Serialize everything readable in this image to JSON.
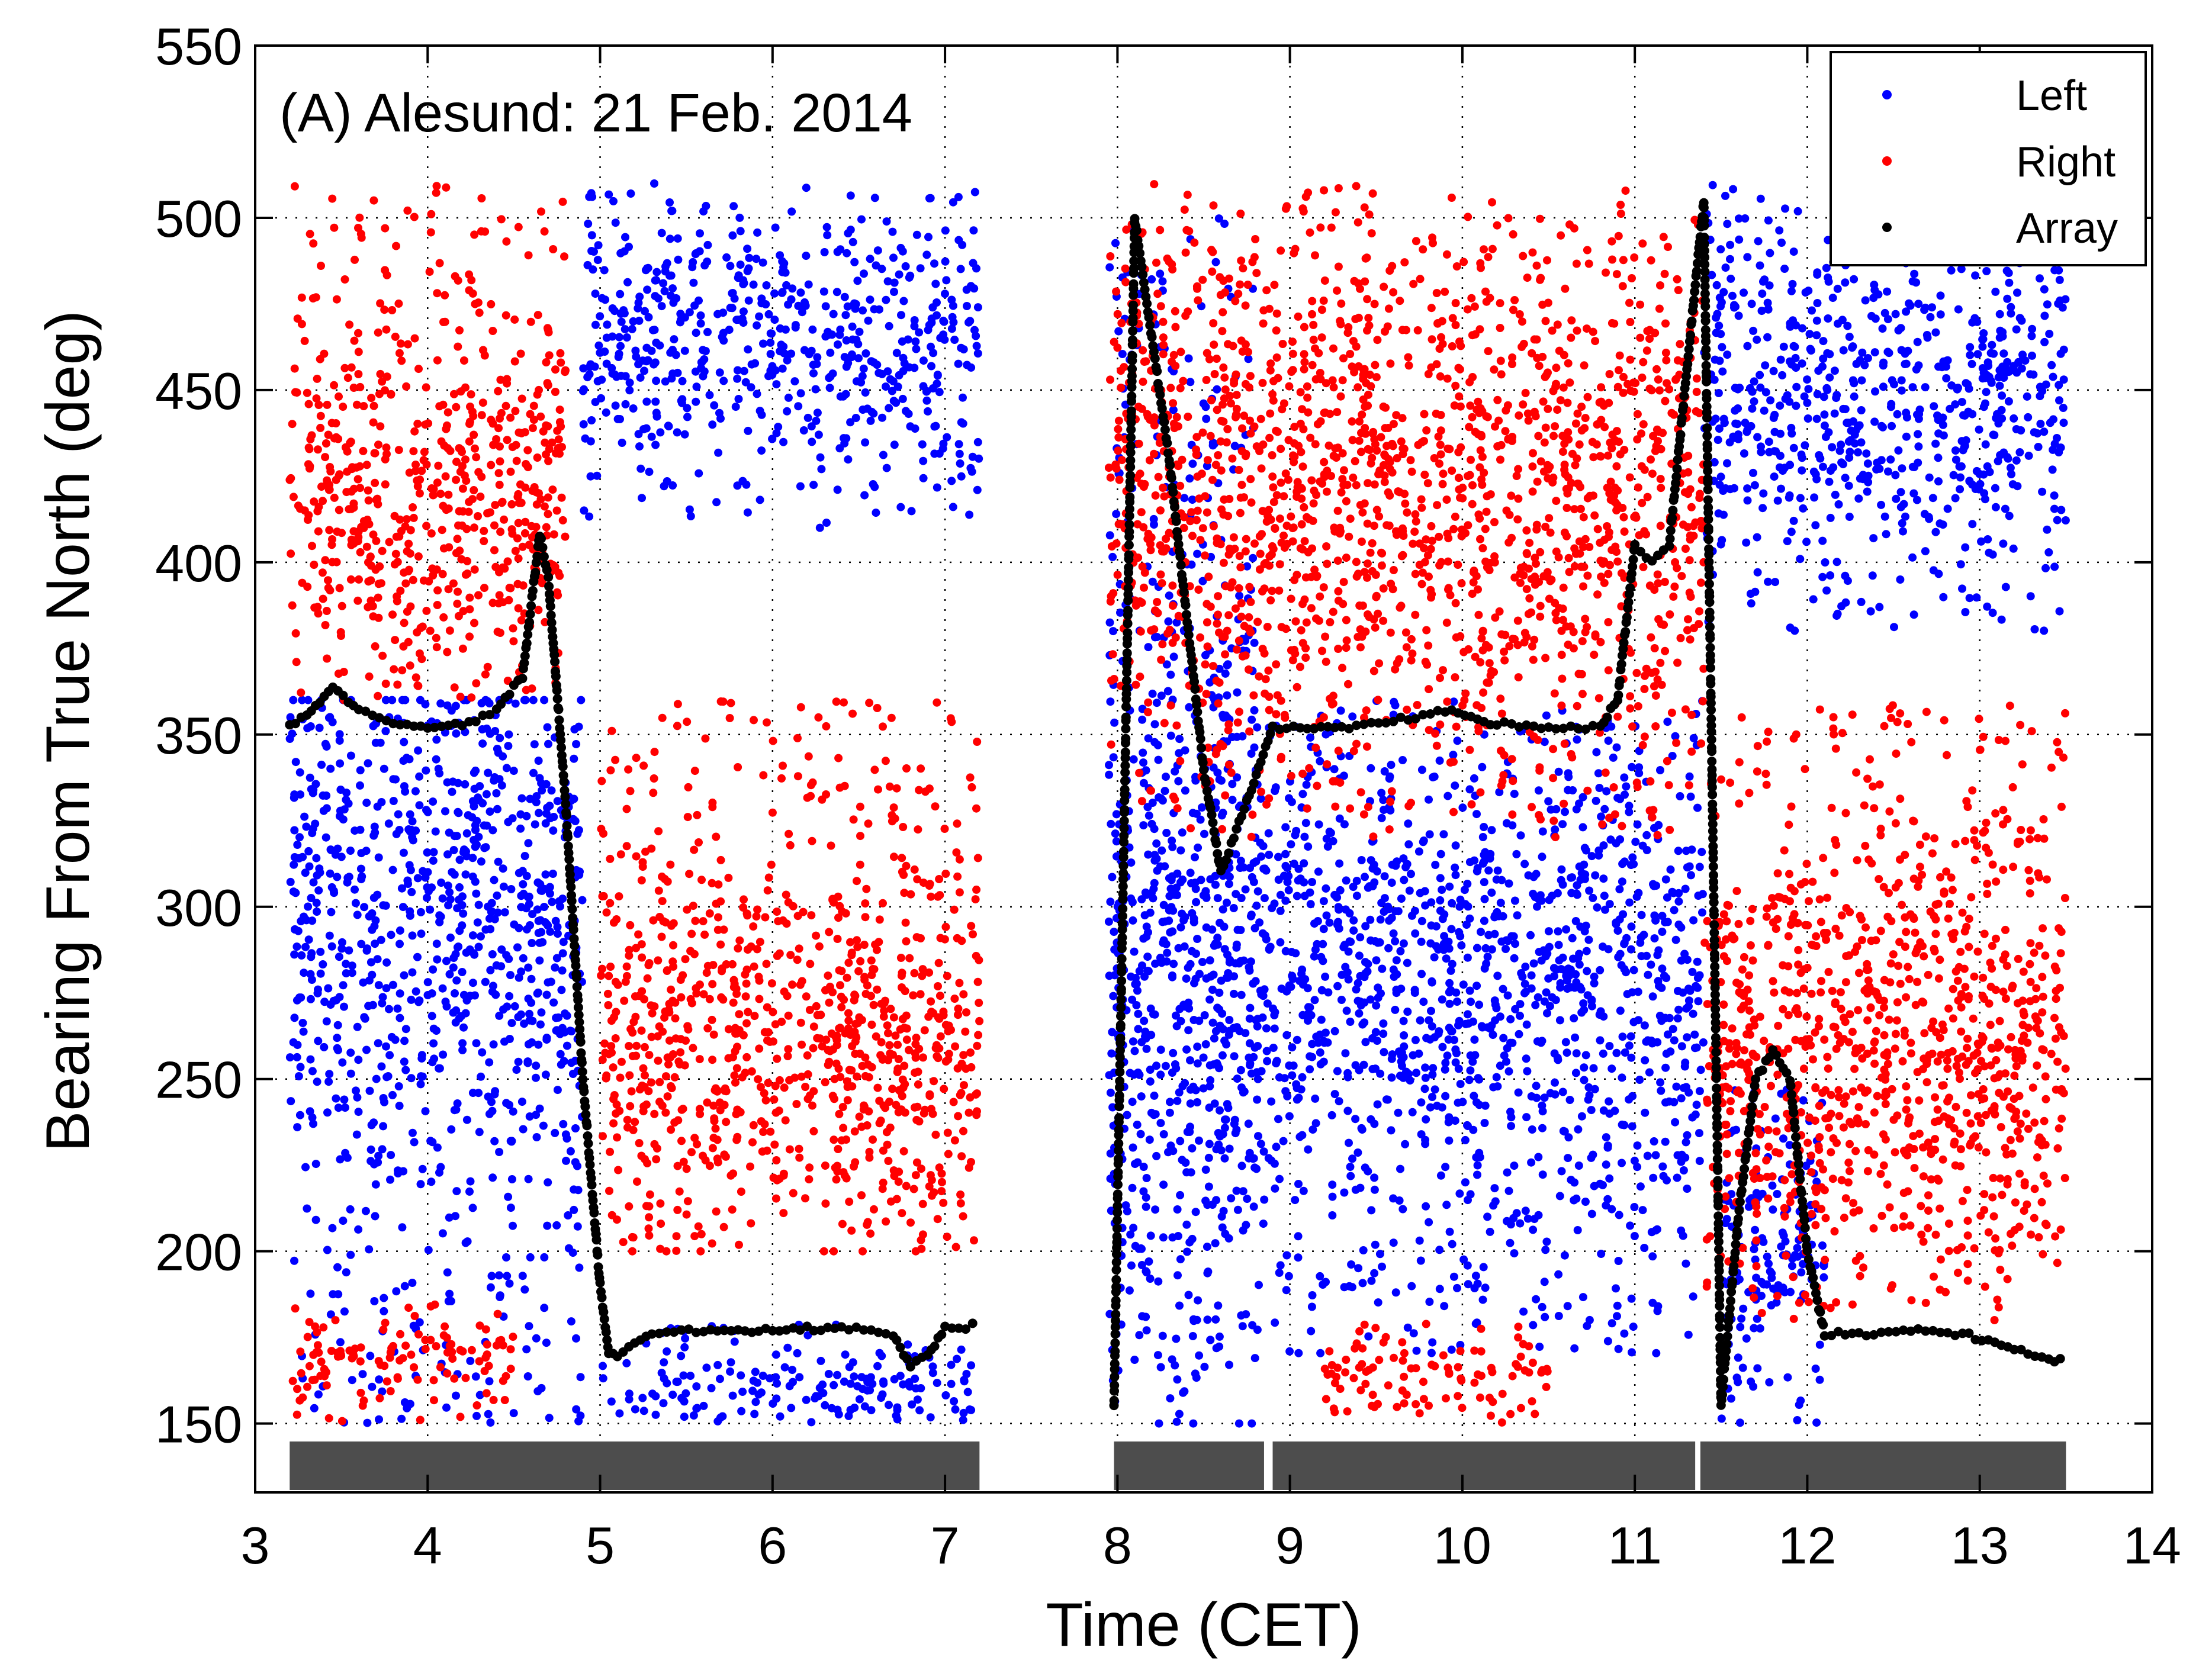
{
  "chart_data": {
    "type": "scatter",
    "title": "(A) Alesund: 21 Feb. 2014",
    "xlabel": "Time (CET)",
    "ylabel": "Bearing From True North (deg)",
    "xlim": [
      3,
      14
    ],
    "ylim": [
      130,
      550
    ],
    "xticks": [
      3,
      4,
      5,
      6,
      7,
      8,
      9,
      10,
      11,
      12,
      13,
      14
    ],
    "yticks": [
      150,
      200,
      250,
      300,
      350,
      400,
      450,
      500,
      550
    ],
    "grid": "dotted",
    "legend": {
      "position": "top-right",
      "entries": [
        "Left",
        "Right",
        "Array"
      ]
    },
    "colors": {
      "Left": "#0000ff",
      "Right": "#ff0000",
      "Array": "#000000",
      "bars": "#4d4d4d"
    },
    "series": [
      {
        "name": "Left",
        "description_regions": [
          {
            "x": [
              3.2,
              4.9
            ],
            "y": [
              150,
              360
            ],
            "center": 300
          },
          {
            "x": [
              4.9,
              7.2
            ],
            "y": [
              410,
              510
            ],
            "center": 465
          },
          {
            "x": [
              5.0,
              7.2
            ],
            "y": [
              150,
              180
            ],
            "center": 160
          },
          {
            "x": [
              7.95,
              8.8
            ],
            "y": [
              150,
              500
            ],
            "center": 280
          },
          {
            "x": [
              8.8,
              11.4
            ],
            "y": [
              170,
              360
            ],
            "center": 280
          },
          {
            "x": [
              11.4,
              13.5
            ],
            "y": [
              380,
              510
            ],
            "center": 450
          },
          {
            "x": [
              11.5,
              12.1
            ],
            "y": [
              150,
              250
            ],
            "center": 200
          }
        ]
      },
      {
        "name": "Right",
        "description_regions": [
          {
            "x": [
              3.2,
              4.8
            ],
            "y": [
              360,
              510
            ],
            "center": 420
          },
          {
            "x": [
              5.0,
              7.2
            ],
            "y": [
              200,
              360
            ],
            "center": 260
          },
          {
            "x": [
              7.95,
              11.4
            ],
            "y": [
              320,
              510
            ],
            "center": 420
          },
          {
            "x": [
              9.2,
              10.5
            ],
            "y": [
              150,
              180
            ],
            "center": 165
          },
          {
            "x": [
              11.4,
              13.5
            ],
            "y": [
              180,
              360
            ],
            "center": 260
          },
          {
            "x": [
              3.2,
              4.5
            ],
            "y": [
              150,
              185
            ],
            "center": 170
          }
        ]
      },
      {
        "name": "Array",
        "x": [
          3.2,
          3.3,
          3.45,
          3.6,
          3.8,
          4.0,
          4.2,
          4.4,
          4.55,
          4.65,
          4.7,
          4.8,
          4.9,
          5.0,
          5.05,
          5.1,
          5.3,
          5.6,
          6.0,
          6.4,
          6.7,
          6.8,
          6.9,
          7.0,
          7.2,
          7.98,
          8.1,
          8.3,
          8.5,
          8.6,
          8.75,
          8.9,
          9.1,
          9.3,
          9.6,
          9.9,
          10.2,
          10.5,
          10.8,
          10.9,
          11.0,
          11.1,
          11.2,
          11.4,
          11.5,
          11.6,
          11.7,
          11.8,
          11.9,
          12.0,
          12.1,
          12.3,
          12.6,
          12.9,
          13.2,
          13.4,
          13.5
        ],
        "y": [
          353,
          355,
          364,
          357,
          353,
          352,
          353,
          357,
          367,
          408,
          395,
          330,
          250,
          190,
          170,
          170,
          176,
          177,
          177,
          178,
          176,
          167,
          170,
          178,
          178,
          155,
          500,
          430,
          340,
          310,
          330,
          352,
          352,
          352,
          354,
          357,
          353,
          352,
          352,
          360,
          405,
          400,
          405,
          505,
          155,
          210,
          250,
          258,
          250,
          200,
          176,
          176,
          177,
          176,
          172,
          168,
          170
        ]
      }
    ],
    "segment_bars": [
      [
        3.2,
        7.2
      ],
      [
        7.98,
        8.85
      ],
      [
        8.9,
        11.35
      ],
      [
        11.38,
        13.5
      ]
    ]
  }
}
